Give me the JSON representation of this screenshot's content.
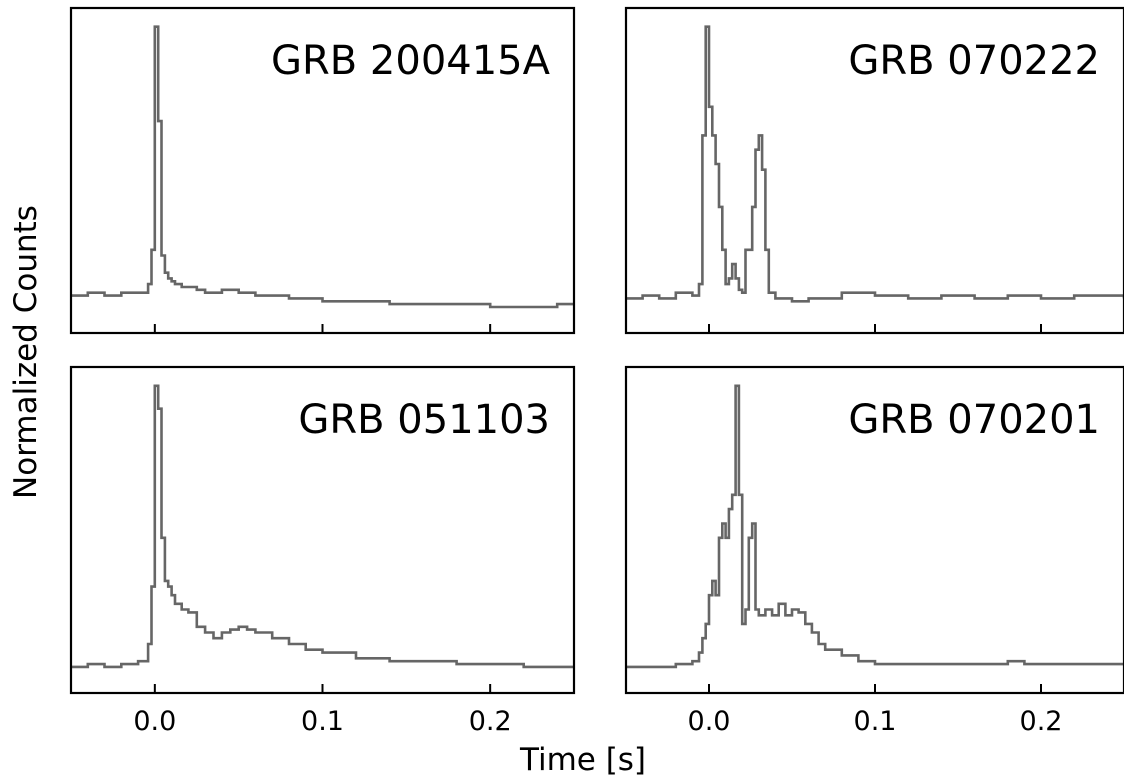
{
  "figure": {
    "ylabel": "Normalized Counts",
    "xlabel": "Time [s]"
  },
  "chart_data": [
    {
      "type": "line",
      "title": "GRB 200415A",
      "xlim": [
        -0.05,
        0.25
      ],
      "ylim": [
        0,
        1
      ],
      "xticks": [
        0.0,
        0.1,
        0.2
      ],
      "xtick_labels": [],
      "y_ticks_shown": false,
      "step": true,
      "color": "#666666",
      "x": [
        -0.05,
        -0.04,
        -0.03,
        -0.02,
        -0.01,
        -0.004,
        -0.002,
        0.0,
        0.002,
        0.004,
        0.006,
        0.008,
        0.01,
        0.012,
        0.016,
        0.02,
        0.025,
        0.03,
        0.04,
        0.05,
        0.06,
        0.07,
        0.08,
        0.1,
        0.12,
        0.14,
        0.16,
        0.18,
        0.2,
        0.22,
        0.24,
        0.25
      ],
      "y": [
        0.04,
        0.05,
        0.04,
        0.05,
        0.05,
        0.08,
        0.2,
        0.98,
        0.65,
        0.18,
        0.12,
        0.1,
        0.09,
        0.08,
        0.07,
        0.07,
        0.06,
        0.05,
        0.06,
        0.05,
        0.04,
        0.04,
        0.03,
        0.02,
        0.02,
        0.01,
        0.01,
        0.01,
        0.0,
        0.0,
        0.01,
        0.01
      ]
    },
    {
      "type": "line",
      "title": "GRB 070222",
      "xlim": [
        -0.05,
        0.25
      ],
      "ylim": [
        0,
        1
      ],
      "xticks": [
        0.0,
        0.1,
        0.2
      ],
      "xtick_labels": [],
      "y_ticks_shown": false,
      "step": true,
      "color": "#666666",
      "x": [
        -0.05,
        -0.04,
        -0.03,
        -0.02,
        -0.01,
        -0.006,
        -0.004,
        -0.002,
        0.0,
        0.002,
        0.004,
        0.006,
        0.008,
        0.01,
        0.012,
        0.014,
        0.016,
        0.018,
        0.02,
        0.022,
        0.026,
        0.028,
        0.03,
        0.032,
        0.034,
        0.036,
        0.04,
        0.05,
        0.06,
        0.08,
        0.1,
        0.12,
        0.14,
        0.16,
        0.18,
        0.2,
        0.22,
        0.25
      ],
      "y": [
        0.03,
        0.04,
        0.03,
        0.05,
        0.04,
        0.08,
        0.6,
        0.98,
        0.7,
        0.6,
        0.5,
        0.35,
        0.2,
        0.08,
        0.1,
        0.15,
        0.1,
        0.06,
        0.05,
        0.2,
        0.35,
        0.55,
        0.6,
        0.48,
        0.2,
        0.05,
        0.03,
        0.02,
        0.03,
        0.05,
        0.04,
        0.03,
        0.04,
        0.03,
        0.04,
        0.03,
        0.04,
        0.03
      ]
    },
    {
      "type": "line",
      "title": "GRB 051103",
      "xlim": [
        -0.05,
        0.25
      ],
      "ylim": [
        0,
        1
      ],
      "xticks": [
        0.0,
        0.1,
        0.2
      ],
      "xtick_labels": [
        "0.0",
        "0.1",
        "0.2"
      ],
      "y_ticks_shown": false,
      "step": true,
      "color": "#666666",
      "x": [
        -0.05,
        -0.04,
        -0.03,
        -0.02,
        -0.01,
        -0.004,
        -0.002,
        0.0,
        0.002,
        0.004,
        0.006,
        0.008,
        0.01,
        0.012,
        0.016,
        0.02,
        0.025,
        0.03,
        0.035,
        0.04,
        0.045,
        0.05,
        0.055,
        0.06,
        0.07,
        0.08,
        0.09,
        0.1,
        0.12,
        0.14,
        0.16,
        0.18,
        0.2,
        0.22,
        0.24,
        0.25
      ],
      "y": [
        0.0,
        0.01,
        0.0,
        0.01,
        0.02,
        0.08,
        0.28,
        0.98,
        0.9,
        0.45,
        0.3,
        0.28,
        0.25,
        0.22,
        0.2,
        0.19,
        0.14,
        0.12,
        0.1,
        0.12,
        0.13,
        0.14,
        0.13,
        0.12,
        0.1,
        0.08,
        0.06,
        0.05,
        0.03,
        0.02,
        0.02,
        0.01,
        0.01,
        0.0,
        0.0,
        0.0
      ]
    },
    {
      "type": "line",
      "title": "GRB 070201",
      "xlim": [
        -0.05,
        0.25
      ],
      "ylim": [
        0,
        1
      ],
      "xticks": [
        0.0,
        0.1,
        0.2
      ],
      "xtick_labels": [
        "0.0",
        "0.1",
        "0.2"
      ],
      "y_ticks_shown": false,
      "step": true,
      "color": "#666666",
      "x": [
        -0.05,
        -0.04,
        -0.03,
        -0.02,
        -0.01,
        -0.006,
        -0.004,
        -0.002,
        0.0,
        0.002,
        0.004,
        0.006,
        0.008,
        0.01,
        0.012,
        0.014,
        0.016,
        0.018,
        0.02,
        0.022,
        0.024,
        0.026,
        0.028,
        0.03,
        0.034,
        0.038,
        0.042,
        0.046,
        0.05,
        0.054,
        0.058,
        0.062,
        0.066,
        0.07,
        0.08,
        0.09,
        0.1,
        0.12,
        0.14,
        0.16,
        0.18,
        0.185,
        0.19,
        0.2,
        0.22,
        0.24,
        0.25
      ],
      "y": [
        0.0,
        0.0,
        0.0,
        0.01,
        0.02,
        0.05,
        0.1,
        0.15,
        0.25,
        0.3,
        0.25,
        0.45,
        0.5,
        0.45,
        0.55,
        0.6,
        0.98,
        0.6,
        0.15,
        0.2,
        0.45,
        0.5,
        0.2,
        0.18,
        0.2,
        0.18,
        0.22,
        0.18,
        0.2,
        0.19,
        0.15,
        0.12,
        0.08,
        0.06,
        0.04,
        0.02,
        0.01,
        0.01,
        0.01,
        0.01,
        0.02,
        0.02,
        0.01,
        0.01,
        0.01,
        0.01,
        0.01
      ]
    }
  ]
}
